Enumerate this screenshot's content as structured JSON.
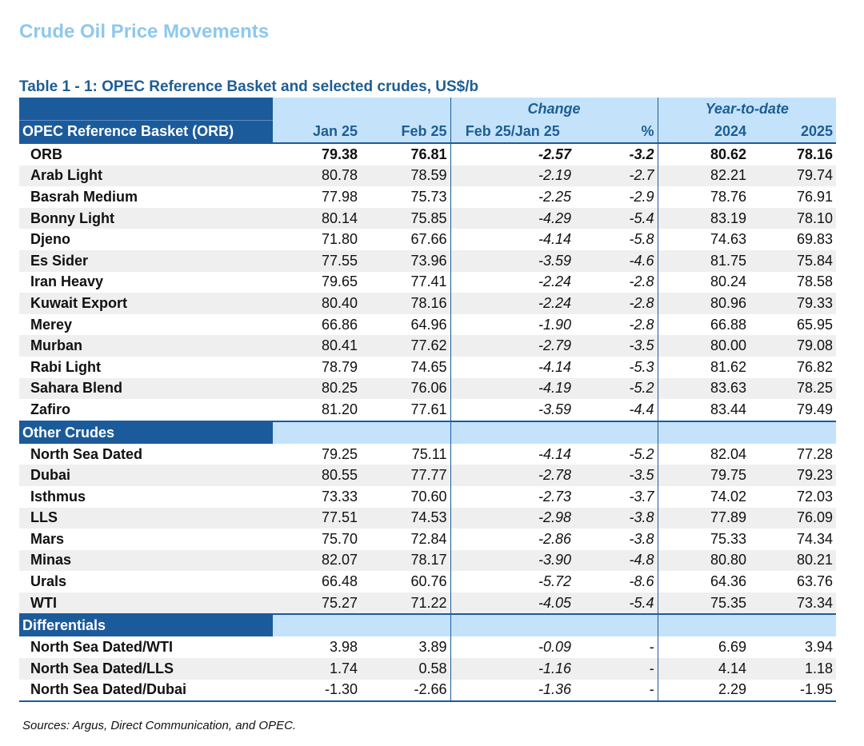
{
  "title": "Crude Oil Price Movements",
  "table_caption": "Table 1 - 1: OPEC Reference Basket and selected crudes, US$/b",
  "header": {
    "group_change": "Change",
    "group_ytd": "Year-to-date",
    "row_label": "OPEC Reference Basket (ORB)",
    "col_jan": "Jan 25",
    "col_feb": "Feb 25",
    "col_change": "Feb 25/Jan 25",
    "col_pct": "%",
    "col_2024": "2024",
    "col_2025": "2025"
  },
  "orb_rows": [
    {
      "name": "ORB",
      "jan": "79.38",
      "feb": "76.81",
      "chg": "-2.57",
      "pct": "-3.2",
      "y24": "80.62",
      "y25": "78.16"
    },
    {
      "name": "Arab Light",
      "jan": "80.78",
      "feb": "78.59",
      "chg": "-2.19",
      "pct": "-2.7",
      "y24": "82.21",
      "y25": "79.74"
    },
    {
      "name": "Basrah Medium",
      "jan": "77.98",
      "feb": "75.73",
      "chg": "-2.25",
      "pct": "-2.9",
      "y24": "78.76",
      "y25": "76.91"
    },
    {
      "name": "Bonny Light",
      "jan": "80.14",
      "feb": "75.85",
      "chg": "-4.29",
      "pct": "-5.4",
      "y24": "83.19",
      "y25": "78.10"
    },
    {
      "name": "Djeno",
      "jan": "71.80",
      "feb": "67.66",
      "chg": "-4.14",
      "pct": "-5.8",
      "y24": "74.63",
      "y25": "69.83"
    },
    {
      "name": "Es Sider",
      "jan": "77.55",
      "feb": "73.96",
      "chg": "-3.59",
      "pct": "-4.6",
      "y24": "81.75",
      "y25": "75.84"
    },
    {
      "name": "Iran Heavy",
      "jan": "79.65",
      "feb": "77.41",
      "chg": "-2.24",
      "pct": "-2.8",
      "y24": "80.24",
      "y25": "78.58"
    },
    {
      "name": "Kuwait Export",
      "jan": "80.40",
      "feb": "78.16",
      "chg": "-2.24",
      "pct": "-2.8",
      "y24": "80.96",
      "y25": "79.33"
    },
    {
      "name": "Merey",
      "jan": "66.86",
      "feb": "64.96",
      "chg": "-1.90",
      "pct": "-2.8",
      "y24": "66.88",
      "y25": "65.95"
    },
    {
      "name": "Murban",
      "jan": "80.41",
      "feb": "77.62",
      "chg": "-2.79",
      "pct": "-3.5",
      "y24": "80.00",
      "y25": "79.08"
    },
    {
      "name": "Rabi Light",
      "jan": "78.79",
      "feb": "74.65",
      "chg": "-4.14",
      "pct": "-5.3",
      "y24": "81.62",
      "y25": "76.82"
    },
    {
      "name": "Sahara Blend",
      "jan": "80.25",
      "feb": "76.06",
      "chg": "-4.19",
      "pct": "-5.2",
      "y24": "83.63",
      "y25": "78.25"
    },
    {
      "name": "Zafiro",
      "jan": "81.20",
      "feb": "77.61",
      "chg": "-3.59",
      "pct": "-4.4",
      "y24": "83.44",
      "y25": "79.49"
    }
  ],
  "other_section": "Other Crudes",
  "other_rows": [
    {
      "name": "North Sea Dated",
      "jan": "79.25",
      "feb": "75.11",
      "chg": "-4.14",
      "pct": "-5.2",
      "y24": "82.04",
      "y25": "77.28"
    },
    {
      "name": "Dubai",
      "jan": "80.55",
      "feb": "77.77",
      "chg": "-2.78",
      "pct": "-3.5",
      "y24": "79.75",
      "y25": "79.23"
    },
    {
      "name": "Isthmus",
      "jan": "73.33",
      "feb": "70.60",
      "chg": "-2.73",
      "pct": "-3.7",
      "y24": "74.02",
      "y25": "72.03"
    },
    {
      "name": "LLS",
      "jan": "77.51",
      "feb": "74.53",
      "chg": "-2.98",
      "pct": "-3.8",
      "y24": "77.89",
      "y25": "76.09"
    },
    {
      "name": "Mars",
      "jan": "75.70",
      "feb": "72.84",
      "chg": "-2.86",
      "pct": "-3.8",
      "y24": "75.33",
      "y25": "74.34"
    },
    {
      "name": "Minas",
      "jan": "82.07",
      "feb": "78.17",
      "chg": "-3.90",
      "pct": "-4.8",
      "y24": "80.80",
      "y25": "80.21"
    },
    {
      "name": "Urals",
      "jan": "66.48",
      "feb": "60.76",
      "chg": "-5.72",
      "pct": "-8.6",
      "y24": "64.36",
      "y25": "63.76"
    },
    {
      "name": "WTI",
      "jan": "75.27",
      "feb": "71.22",
      "chg": "-4.05",
      "pct": "-5.4",
      "y24": "75.35",
      "y25": "73.34"
    }
  ],
  "diff_section": "Differentials",
  "diff_rows": [
    {
      "name": "North Sea Dated/WTI",
      "jan": "3.98",
      "feb": "3.89",
      "chg": "-0.09",
      "pct": "-",
      "y24": "6.69",
      "y25": "3.94"
    },
    {
      "name": "North Sea Dated/LLS",
      "jan": "1.74",
      "feb": "0.58",
      "chg": "-1.16",
      "pct": "-",
      "y24": "4.14",
      "y25": "1.18"
    },
    {
      "name": "North Sea Dated/Dubai",
      "jan": "-1.30",
      "feb": "-2.66",
      "chg": "-1.36",
      "pct": "-",
      "y24": "2.29",
      "y25": "-1.95"
    }
  ],
  "sources": "Sources:  Argus, Direct Communication, and OPEC.",
  "colors": {
    "title": "#8dc8ef",
    "caption": "#1e5d94",
    "header_dark": "#1c5b9b",
    "header_light": "#c4e3fb",
    "stripe": "#efefef"
  }
}
